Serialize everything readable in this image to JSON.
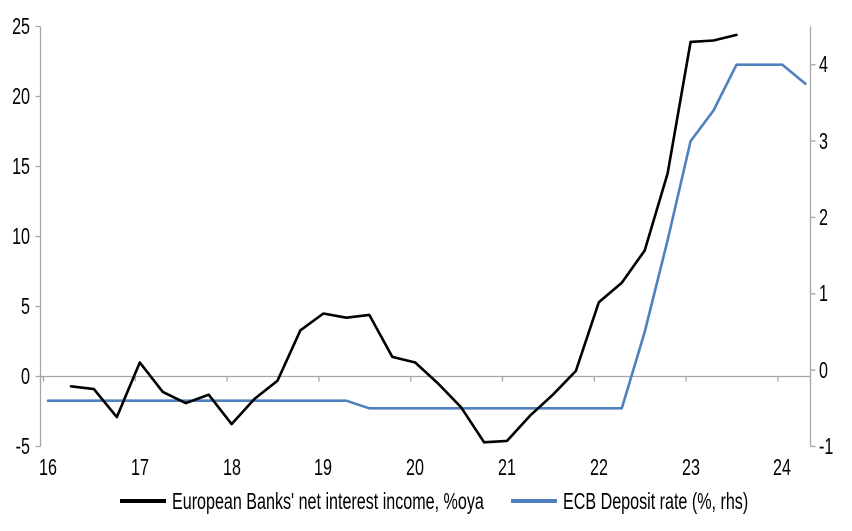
{
  "colors": {
    "background": "#ffffff",
    "axis": "#a6a6a6",
    "text": "#000000",
    "series_black": "#000000",
    "series_blue": "#4f81bd"
  },
  "chart_data": {
    "type": "line",
    "title": "",
    "x_axis": {
      "ticks": [
        16,
        17,
        18,
        19,
        20,
        21,
        22,
        23,
        24
      ],
      "range": [
        16,
        24.4
      ]
    },
    "y_axis_left": {
      "ticks": [
        25,
        20,
        15,
        10,
        5,
        0,
        -5
      ],
      "range": [
        -5,
        25
      ]
    },
    "y_axis_right": {
      "ticks": [
        4,
        3,
        2,
        1,
        0,
        -1
      ],
      "range": [
        -1,
        4.5
      ]
    },
    "grid": "zero-line-only",
    "legend_position": "bottom",
    "series": [
      {
        "name": "European Banks' net interest income, %oya",
        "axis": "left",
        "color": "#000000",
        "points": [
          [
            16.25,
            -0.7
          ],
          [
            16.5,
            -0.9
          ],
          [
            16.75,
            -2.9
          ],
          [
            17.0,
            1.0
          ],
          [
            17.25,
            -1.1
          ],
          [
            17.5,
            -1.9
          ],
          [
            17.75,
            -1.3
          ],
          [
            18.0,
            -3.4
          ],
          [
            18.25,
            -1.6
          ],
          [
            18.5,
            -0.3
          ],
          [
            18.75,
            3.3
          ],
          [
            19.0,
            4.5
          ],
          [
            19.25,
            4.2
          ],
          [
            19.5,
            4.4
          ],
          [
            19.75,
            1.4
          ],
          [
            20.0,
            1.0
          ],
          [
            20.25,
            -0.5
          ],
          [
            20.5,
            -2.2
          ],
          [
            20.75,
            -4.7
          ],
          [
            21.0,
            -4.6
          ],
          [
            21.25,
            -2.8
          ],
          [
            21.5,
            -1.3
          ],
          [
            21.75,
            0.4
          ],
          [
            22.0,
            5.3
          ],
          [
            22.25,
            6.7
          ],
          [
            22.5,
            9.0
          ],
          [
            22.75,
            14.5
          ],
          [
            23.0,
            23.9
          ],
          [
            23.25,
            24.0
          ],
          [
            23.5,
            24.4
          ]
        ]
      },
      {
        "name": "ECB Deposit rate (%, rhs)",
        "axis": "right",
        "color": "#4f81bd",
        "points": [
          [
            16.0,
            -0.4
          ],
          [
            16.25,
            -0.4
          ],
          [
            16.5,
            -0.4
          ],
          [
            16.75,
            -0.4
          ],
          [
            17.0,
            -0.4
          ],
          [
            17.25,
            -0.4
          ],
          [
            17.5,
            -0.4
          ],
          [
            17.75,
            -0.4
          ],
          [
            18.0,
            -0.4
          ],
          [
            18.25,
            -0.4
          ],
          [
            18.5,
            -0.4
          ],
          [
            18.75,
            -0.4
          ],
          [
            19.0,
            -0.4
          ],
          [
            19.25,
            -0.4
          ],
          [
            19.5,
            -0.5
          ],
          [
            19.75,
            -0.5
          ],
          [
            20.0,
            -0.5
          ],
          [
            20.25,
            -0.5
          ],
          [
            20.5,
            -0.5
          ],
          [
            20.75,
            -0.5
          ],
          [
            21.0,
            -0.5
          ],
          [
            21.25,
            -0.5
          ],
          [
            21.5,
            -0.5
          ],
          [
            21.75,
            -0.5
          ],
          [
            22.0,
            -0.5
          ],
          [
            22.25,
            -0.5
          ],
          [
            22.5,
            0.5
          ],
          [
            22.75,
            1.7
          ],
          [
            23.0,
            3.0
          ],
          [
            23.25,
            3.4
          ],
          [
            23.5,
            4.0
          ],
          [
            23.75,
            4.0
          ],
          [
            24.0,
            4.0
          ],
          [
            24.25,
            3.75
          ]
        ]
      }
    ]
  }
}
